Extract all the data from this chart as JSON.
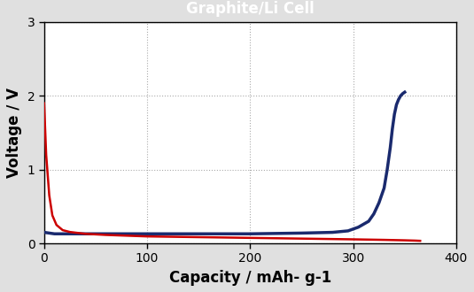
{
  "title": "Graphite/Li Cell",
  "title_bg": "#1B7EC2",
  "title_color": "white",
  "xlabel": "Capacity / mAh- g-1",
  "ylabel": "Voltage / V",
  "xlim": [
    0,
    400
  ],
  "ylim": [
    0,
    3
  ],
  "xticks": [
    0,
    100,
    200,
    300,
    400
  ],
  "yticks": [
    0,
    1,
    2,
    3
  ],
  "bg_color": "#E0E0E0",
  "plot_bg": "white",
  "grid_color": "#AAAAAA",
  "blue_color": "#1A2A6E",
  "red_color": "#CC0000",
  "blue_line": {
    "x": [
      0,
      5,
      10,
      20,
      50,
      100,
      150,
      200,
      250,
      280,
      295,
      305,
      315,
      320,
      325,
      330,
      333,
      336,
      338,
      340,
      342,
      344,
      346,
      348,
      350
    ],
    "y": [
      0.15,
      0.14,
      0.13,
      0.13,
      0.13,
      0.13,
      0.13,
      0.13,
      0.14,
      0.15,
      0.17,
      0.22,
      0.3,
      0.4,
      0.55,
      0.75,
      1.0,
      1.3,
      1.55,
      1.75,
      1.88,
      1.95,
      2.0,
      2.03,
      2.05
    ]
  },
  "red_line": {
    "x": [
      0,
      2,
      5,
      8,
      12,
      18,
      25,
      40,
      60,
      80,
      100,
      150,
      200,
      250,
      300,
      330,
      350,
      360,
      365
    ],
    "y": [
      1.9,
      1.2,
      0.65,
      0.38,
      0.25,
      0.18,
      0.155,
      0.13,
      0.115,
      0.105,
      0.095,
      0.085,
      0.075,
      0.065,
      0.055,
      0.048,
      0.042,
      0.038,
      0.035
    ]
  },
  "figsize": [
    5.35,
    3.3
  ],
  "dpi": 100
}
